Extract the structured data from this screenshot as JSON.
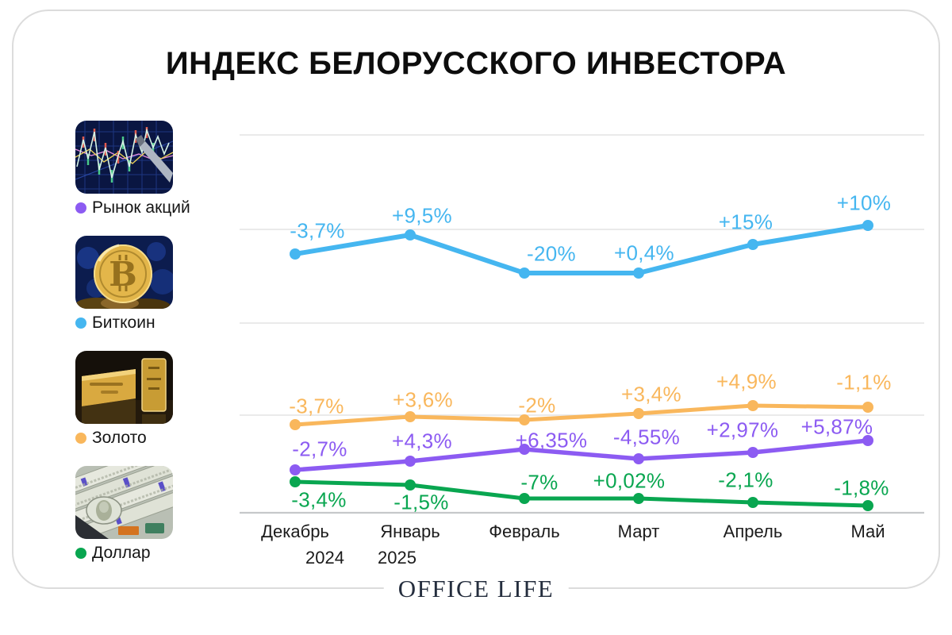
{
  "title": "ИНДЕКС БЕЛОРУССКОГО ИНВЕСТОРА",
  "footer": {
    "logo": "OFFICE LIFE"
  },
  "legend": {
    "items": [
      {
        "label": "Рынок акций",
        "color": "#8C5BF2",
        "image": "stock-market-photo"
      },
      {
        "label": "Биткоин",
        "color": "#45B6F0",
        "image": "bitcoin-photo"
      },
      {
        "label": "Золото",
        "color": "#F9B75C",
        "image": "gold-bars-photo"
      },
      {
        "label": "Доллар",
        "color": "#09A650",
        "image": "dollar-bills-photo"
      }
    ]
  },
  "chart_data": {
    "type": "line",
    "title": "ИНДЕКС БЕЛОРУССКОГО ИНВЕСТОРА",
    "categories": [
      "Декабрь 2024",
      "Январь 2025",
      "Февраль",
      "Март",
      "Апрель",
      "Май"
    ],
    "x_axis": {
      "months": [
        "Декабрь",
        "Январь",
        "Февраль",
        "Март",
        "Апрель",
        "Май"
      ],
      "years": [
        "2024",
        "2025",
        "",
        "",
        "",
        ""
      ]
    },
    "grid": true,
    "legend_position": "left",
    "value_format": "percent, comma decimal separator",
    "series": [
      {
        "name": "Биткоин",
        "color": "#45B6F0",
        "values": [
          -3.7,
          9.5,
          -20,
          0.4,
          15,
          10
        ],
        "labels": [
          "-3,7%",
          "+9,5%",
          "-20%",
          "+0,4%",
          "+15%",
          "+10%"
        ]
      },
      {
        "name": "Золото",
        "color": "#F9B75C",
        "values": [
          -3.7,
          3.6,
          -2,
          3.4,
          4.9,
          -1.1
        ],
        "labels": [
          "-3,7%",
          "+3,6%",
          "-2%",
          "+3,4%",
          "+4,9%",
          "-1,1%"
        ]
      },
      {
        "name": "Рынок акций",
        "color": "#8C5BF2",
        "values": [
          -2.7,
          4.3,
          6.35,
          -4.55,
          2.97,
          5.87
        ],
        "labels": [
          "-2,7%",
          "+4,3%",
          "+6,35%",
          "-4,55%",
          "+2,97%",
          "+5,87%"
        ]
      },
      {
        "name": "Доллар",
        "color": "#09A650",
        "values": [
          -3.4,
          -1.5,
          -7,
          0.02,
          -2.1,
          -1.8
        ],
        "labels": [
          "-3,4%",
          "-1,5%",
          "-7%",
          "+0,02%",
          "-2,1%",
          "-1,8%"
        ]
      }
    ]
  }
}
